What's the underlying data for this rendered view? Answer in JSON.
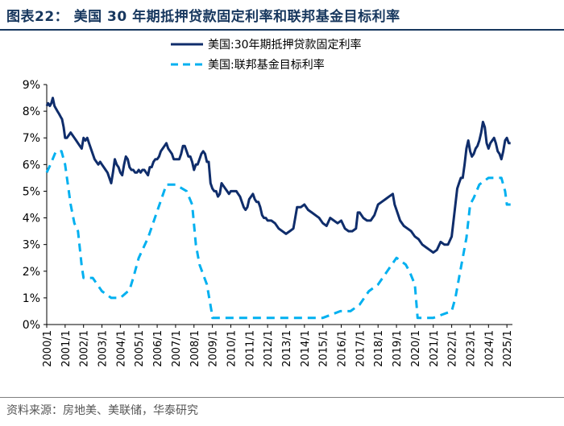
{
  "title": "图表22： 美国 30 年期抵押贷款固定利率和联邦基金目标利率",
  "source": "资料来源：房地美、美联储，华泰研究",
  "chart_data": {
    "type": "line",
    "title": "图表22： 美国 30 年期抵押贷款固定利率和联邦基金目标利率",
    "xlabel": "",
    "ylabel": "",
    "xlim": [
      2000.0,
      2025.3
    ],
    "ylim": [
      0,
      9
    ],
    "y_ticks": [
      "0%",
      "1%",
      "2%",
      "3%",
      "4%",
      "5%",
      "6%",
      "7%",
      "8%",
      "9%"
    ],
    "x_ticks": [
      "2000/1",
      "2001/1",
      "2002/1",
      "2003/1",
      "2004/1",
      "2005/1",
      "2006/1",
      "2007/1",
      "2008/1",
      "2009/1",
      "2010/1",
      "2011/1",
      "2012/1",
      "2013/1",
      "2014/1",
      "2015/1",
      "2016/1",
      "2017/1",
      "2018/1",
      "2019/1",
      "2020/1",
      "2021/1",
      "2022/1",
      "2023/1",
      "2024/1",
      "2025/1"
    ],
    "legend_position": "top",
    "series": [
      {
        "name": "美国:30年期抵押贷款固定利率",
        "style": "solid",
        "color": "#0F2D6B",
        "x": [
          2000.0,
          2000.08,
          2000.17,
          2000.25,
          2000.33,
          2000.42,
          2000.5,
          2000.58,
          2000.67,
          2000.75,
          2000.83,
          2000.92,
          2001.0,
          2001.1,
          2001.2,
          2001.3,
          2001.4,
          2001.5,
          2001.6,
          2001.7,
          2001.8,
          2001.9,
          2002.0,
          2002.1,
          2002.2,
          2002.3,
          2002.4,
          2002.5,
          2002.6,
          2002.7,
          2002.8,
          2002.9,
          2003.0,
          2003.1,
          2003.2,
          2003.3,
          2003.4,
          2003.5,
          2003.55,
          2003.6,
          2003.7,
          2003.8,
          2003.9,
          2004.0,
          2004.1,
          2004.2,
          2004.3,
          2004.4,
          2004.5,
          2004.6,
          2004.7,
          2004.8,
          2004.9,
          2005.0,
          2005.1,
          2005.2,
          2005.3,
          2005.4,
          2005.5,
          2005.6,
          2005.7,
          2005.8,
          2005.9,
          2006.0,
          2006.1,
          2006.2,
          2006.3,
          2006.4,
          2006.5,
          2006.6,
          2006.7,
          2006.8,
          2006.9,
          2007.0,
          2007.1,
          2007.2,
          2007.3,
          2007.4,
          2007.5,
          2007.6,
          2007.7,
          2007.8,
          2007.9,
          2008.0,
          2008.1,
          2008.2,
          2008.3,
          2008.4,
          2008.5,
          2008.6,
          2008.7,
          2008.8,
          2008.9,
          2009.0,
          2009.1,
          2009.2,
          2009.3,
          2009.4,
          2009.5,
          2009.6,
          2009.7,
          2009.8,
          2009.9,
          2010.0,
          2010.1,
          2010.2,
          2010.3,
          2010.4,
          2010.5,
          2010.6,
          2010.7,
          2010.8,
          2010.9,
          2011.0,
          2011.1,
          2011.2,
          2011.3,
          2011.4,
          2011.5,
          2011.6,
          2011.7,
          2011.8,
          2011.9,
          2012.0,
          2012.2,
          2012.4,
          2012.6,
          2012.8,
          2013.0,
          2013.2,
          2013.4,
          2013.5,
          2013.6,
          2013.8,
          2014.0,
          2014.2,
          2014.4,
          2014.6,
          2014.8,
          2015.0,
          2015.2,
          2015.4,
          2015.6,
          2015.8,
          2016.0,
          2016.2,
          2016.4,
          2016.6,
          2016.8,
          2016.9,
          2017.0,
          2017.2,
          2017.4,
          2017.6,
          2017.8,
          2018.0,
          2018.2,
          2018.4,
          2018.6,
          2018.8,
          2018.9,
          2019.0,
          2019.2,
          2019.4,
          2019.6,
          2019.8,
          2020.0,
          2020.2,
          2020.4,
          2020.6,
          2020.8,
          2021.0,
          2021.2,
          2021.4,
          2021.6,
          2021.8,
          2022.0,
          2022.1,
          2022.2,
          2022.3,
          2022.4,
          2022.5,
          2022.6,
          2022.7,
          2022.8,
          2022.9,
          2023.0,
          2023.1,
          2023.2,
          2023.3,
          2023.4,
          2023.5,
          2023.6,
          2023.7,
          2023.8,
          2023.9,
          2024.0,
          2024.1,
          2024.2,
          2024.3,
          2024.4,
          2024.5,
          2024.6,
          2024.7,
          2024.8,
          2024.9,
          2025.0,
          2025.1,
          2025.2
        ],
        "y": [
          8.2,
          8.3,
          8.2,
          8.3,
          8.5,
          8.2,
          8.1,
          8.0,
          7.9,
          7.8,
          7.7,
          7.4,
          7.0,
          7.0,
          7.1,
          7.2,
          7.1,
          7.0,
          6.9,
          6.8,
          6.7,
          6.6,
          7.0,
          6.9,
          7.0,
          6.8,
          6.6,
          6.4,
          6.2,
          6.1,
          6.0,
          6.1,
          6.0,
          5.9,
          5.8,
          5.7,
          5.5,
          5.3,
          5.5,
          5.7,
          6.2,
          6.0,
          5.9,
          5.7,
          5.6,
          6.0,
          6.3,
          6.2,
          5.9,
          5.8,
          5.8,
          5.7,
          5.7,
          5.8,
          5.7,
          5.8,
          5.8,
          5.7,
          5.6,
          5.9,
          5.9,
          6.1,
          6.2,
          6.2,
          6.3,
          6.5,
          6.6,
          6.7,
          6.8,
          6.6,
          6.5,
          6.4,
          6.2,
          6.2,
          6.2,
          6.2,
          6.4,
          6.7,
          6.7,
          6.5,
          6.3,
          6.3,
          6.1,
          5.8,
          6.0,
          6.0,
          6.2,
          6.4,
          6.5,
          6.4,
          6.1,
          6.1,
          5.3,
          5.1,
          5.0,
          5.0,
          4.8,
          4.9,
          5.3,
          5.2,
          5.1,
          5.0,
          4.9,
          5.0,
          5.0,
          5.0,
          5.0,
          4.9,
          4.8,
          4.6,
          4.4,
          4.3,
          4.4,
          4.7,
          4.8,
          4.9,
          4.7,
          4.6,
          4.6,
          4.4,
          4.1,
          4.0,
          4.0,
          3.9,
          3.9,
          3.8,
          3.6,
          3.5,
          3.4,
          3.5,
          3.6,
          4.0,
          4.4,
          4.4,
          4.5,
          4.3,
          4.2,
          4.1,
          4.0,
          3.8,
          3.7,
          4.0,
          3.9,
          3.8,
          3.9,
          3.6,
          3.5,
          3.5,
          3.6,
          4.2,
          4.2,
          4.0,
          3.9,
          3.9,
          4.1,
          4.5,
          4.6,
          4.7,
          4.8,
          4.9,
          4.5,
          4.3,
          3.9,
          3.7,
          3.6,
          3.5,
          3.3,
          3.2,
          3.0,
          2.9,
          2.8,
          2.7,
          2.8,
          3.1,
          3.0,
          3.0,
          3.3,
          3.9,
          4.5,
          5.1,
          5.3,
          5.5,
          5.5,
          6.0,
          6.6,
          6.9,
          6.5,
          6.3,
          6.4,
          6.6,
          6.7,
          6.9,
          7.2,
          7.6,
          7.4,
          6.8,
          6.6,
          6.8,
          6.9,
          7.0,
          6.8,
          6.5,
          6.4,
          6.2,
          6.5,
          6.9,
          7.0,
          6.8,
          6.8
        ]
      },
      {
        "name": "美国:联邦基金目标利率",
        "style": "dashed",
        "color": "#00B0F0",
        "x": [
          2000.0,
          2000.2,
          2000.5,
          2000.8,
          2001.0,
          2001.1,
          2001.3,
          2001.5,
          2001.7,
          2001.9,
          2002.0,
          2002.5,
          2003.0,
          2003.5,
          2004.0,
          2004.5,
          2004.7,
          2005.0,
          2005.5,
          2006.0,
          2006.5,
          2007.0,
          2007.6,
          2007.9,
          2008.1,
          2008.3,
          2008.7,
          2008.95,
          2009.0,
          2010.0,
          2011.0,
          2012.0,
          2013.0,
          2014.0,
          2015.0,
          2015.95,
          2016.0,
          2016.5,
          2017.0,
          2017.5,
          2018.0,
          2018.5,
          2019.0,
          2019.5,
          2019.7,
          2020.0,
          2020.15,
          2020.3,
          2021.0,
          2022.0,
          2022.2,
          2022.4,
          2022.6,
          2022.8,
          2023.0,
          2023.2,
          2023.5,
          2024.0,
          2024.7,
          2024.9,
          2025.0,
          2025.2
        ],
        "y": [
          5.7,
          6.0,
          6.5,
          6.5,
          6.0,
          5.5,
          4.5,
          3.8,
          3.5,
          2.2,
          1.75,
          1.75,
          1.25,
          1.0,
          1.0,
          1.3,
          1.75,
          2.5,
          3.25,
          4.25,
          5.25,
          5.25,
          5.0,
          4.5,
          3.0,
          2.25,
          1.5,
          0.5,
          0.25,
          0.25,
          0.25,
          0.25,
          0.25,
          0.25,
          0.25,
          0.5,
          0.5,
          0.5,
          0.75,
          1.25,
          1.5,
          2.0,
          2.5,
          2.25,
          2.0,
          1.5,
          0.25,
          0.25,
          0.25,
          0.5,
          1.0,
          1.75,
          2.5,
          3.25,
          4.5,
          4.75,
          5.25,
          5.5,
          5.5,
          5.0,
          4.5,
          4.5
        ]
      }
    ]
  }
}
